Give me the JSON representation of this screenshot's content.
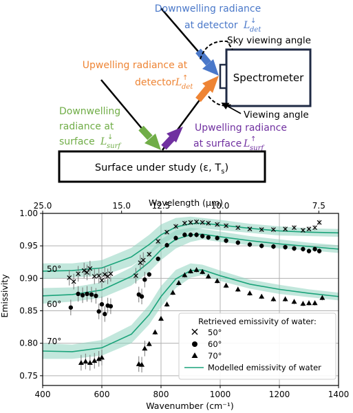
{
  "diagram": {
    "colors": {
      "blue": "#4a78c9",
      "orange": "#ee8434",
      "green": "#70ad47",
      "purple": "#7030a0",
      "black": "#000000"
    },
    "downwelling_detector": {
      "line1": "Downwelling radiance",
      "line2": "at detector",
      "sym": "L",
      "sup": "↓",
      "sub": "det"
    },
    "sky_angle": "Sky viewing angle",
    "spectrometer": "Spectrometer",
    "upwelling_detector": {
      "line1": "Upwelling radiance at",
      "line2": "detector",
      "sym": "L",
      "sup": "↑",
      "sub": "det"
    },
    "viewing_angle": "Viewing angle",
    "downwelling_surface": {
      "line1": "Downwelling",
      "line2": "radiance at",
      "line3": "surface",
      "sym": "L",
      "sup": "↓",
      "sub": "surf"
    },
    "upwelling_surface": {
      "line1": "Upwelling radiance",
      "line2": "at surface",
      "sym": "L",
      "sup": "↑",
      "sub": "surf"
    },
    "surface_box": {
      "text": "Surface under study (ε, T",
      "sub": "s",
      "close": ")"
    }
  },
  "chart_data": {
    "type": "scatter",
    "ylabel": "Emissivity",
    "xlabel": "Wavenumber (cm⁻¹)",
    "xlim": [
      400,
      1400
    ],
    "ylim": [
      0.735,
      1.0
    ],
    "x_ticks": [
      400,
      600,
      800,
      1000,
      1200,
      1400
    ],
    "y_ticks": [
      "0.75",
      "0.80",
      "0.85",
      "0.90",
      "0.95",
      "1.00"
    ],
    "top_axis": {
      "label": "Wavelength (μm)",
      "ticks": [
        {
          "label": "25.0",
          "wavenumber": 400
        },
        {
          "label": "15.0",
          "wavenumber": 666.7
        },
        {
          "label": "12.5",
          "wavenumber": 800
        },
        {
          "label": "10.0",
          "wavenumber": 1000
        },
        {
          "label": "7.5",
          "wavenumber": 1333.3
        }
      ]
    },
    "grid": true,
    "annotations": [
      "50°",
      "60°",
      "70°"
    ],
    "legend": {
      "placement": "bottom-right",
      "title": "Retrieved emissivity of water:",
      "entries": [
        {
          "marker": "x",
          "label": "50°"
        },
        {
          "marker": "circle",
          "label": "60°"
        },
        {
          "marker": "triangle",
          "label": "70°"
        },
        {
          "marker": "line",
          "label": "Modelled emissivity of water"
        }
      ]
    },
    "model_color": "#1aa37a",
    "band_color": "#8fd3bf",
    "model_curves": [
      {
        "angle": "50°",
        "x": [
          400,
          500,
          600,
          700,
          760,
          800,
          850,
          900,
          940,
          1000,
          1100,
          1200,
          1300,
          1400
        ],
        "y": [
          0.911,
          0.912,
          0.916,
          0.933,
          0.952,
          0.967,
          0.979,
          0.984,
          0.985,
          0.982,
          0.977,
          0.973,
          0.971,
          0.97
        ]
      },
      {
        "angle": "60°",
        "x": [
          400,
          500,
          600,
          700,
          760,
          800,
          850,
          900,
          940,
          1000,
          1100,
          1200,
          1300,
          1400
        ],
        "y": [
          0.873,
          0.875,
          0.882,
          0.903,
          0.925,
          0.944,
          0.96,
          0.967,
          0.968,
          0.964,
          0.958,
          0.953,
          0.949,
          0.945
        ]
      },
      {
        "angle": "70°",
        "x": [
          400,
          500,
          600,
          700,
          760,
          800,
          850,
          900,
          940,
          1000,
          1100,
          1200,
          1300,
          1400
        ],
        "y": [
          0.788,
          0.787,
          0.793,
          0.814,
          0.844,
          0.872,
          0.899,
          0.912,
          0.913,
          0.904,
          0.891,
          0.883,
          0.877,
          0.872
        ]
      }
    ],
    "band_half_widths": [
      0.012,
      0.011,
      0.012,
      0.014,
      0.015,
      0.016,
      0.014,
      0.011,
      0.008,
      0.008,
      0.007,
      0.007,
      0.006,
      0.006
    ],
    "series": [
      {
        "name": "50°",
        "marker": "x",
        "x": [
          490,
          505,
          520,
          540,
          550,
          560,
          575,
          590,
          600,
          610,
          620,
          630,
          715,
          730,
          740,
          760,
          790,
          820,
          850,
          880,
          900,
          920,
          940,
          960,
          990,
          1020,
          1060,
          1100,
          1140,
          1180,
          1220,
          1250,
          1280,
          1300,
          1320,
          1335
        ],
        "y": [
          0.901,
          0.895,
          0.907,
          0.912,
          0.909,
          0.915,
          0.903,
          0.904,
          0.897,
          0.906,
          0.903,
          0.907,
          0.904,
          0.924,
          0.928,
          0.937,
          0.957,
          0.971,
          0.98,
          0.985,
          0.986,
          0.987,
          0.986,
          0.985,
          0.983,
          0.981,
          0.978,
          0.976,
          0.975,
          0.975,
          0.976,
          0.978,
          0.974,
          0.976,
          0.978,
          0.986
        ]
      },
      {
        "name": "60°",
        "marker": "circle",
        "x": [
          495,
          520,
          535,
          550,
          565,
          580,
          590,
          600,
          610,
          620,
          630,
          725,
          735,
          745,
          760,
          790,
          820,
          850,
          880,
          900,
          920,
          940,
          960,
          990,
          1020,
          1060,
          1100,
          1140,
          1180,
          1220,
          1250,
          1280,
          1300,
          1320,
          1335
        ],
        "y": [
          0.855,
          0.876,
          0.874,
          0.876,
          0.875,
          0.873,
          0.849,
          0.86,
          0.845,
          0.858,
          0.857,
          0.875,
          0.872,
          0.898,
          0.906,
          0.93,
          0.951,
          0.962,
          0.967,
          0.967,
          0.967,
          0.965,
          0.963,
          0.962,
          0.958,
          0.955,
          0.952,
          0.95,
          0.949,
          0.948,
          0.946,
          0.945,
          0.942,
          0.945,
          0.942
        ]
      },
      {
        "name": "70°",
        "marker": "triangle",
        "x": [
          530,
          545,
          560,
          575,
          590,
          600,
          725,
          735,
          745,
          760,
          780,
          800,
          820,
          840,
          860,
          880,
          900,
          920,
          940,
          960,
          990,
          1020,
          1060,
          1100,
          1140,
          1180,
          1220,
          1250,
          1280,
          1300,
          1320,
          1345
        ],
        "y": [
          0.77,
          0.772,
          0.77,
          0.773,
          0.776,
          0.778,
          0.768,
          0.767,
          0.792,
          0.799,
          0.817,
          0.838,
          0.86,
          0.878,
          0.893,
          0.905,
          0.911,
          0.913,
          0.91,
          0.903,
          0.896,
          0.889,
          0.883,
          0.877,
          0.872,
          0.868,
          0.868,
          0.864,
          0.861,
          0.862,
          0.862,
          0.87
        ]
      }
    ]
  }
}
